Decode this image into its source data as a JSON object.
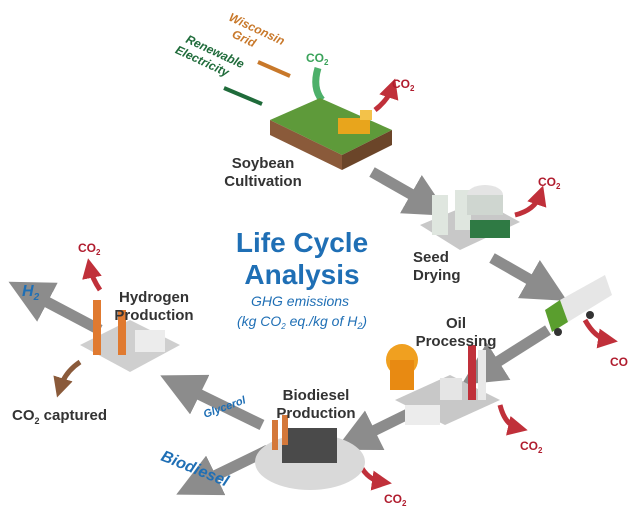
{
  "inputs": [
    {
      "label": [
        "Wisconsin",
        "Grid"
      ]
    },
    {
      "label": [
        "Renewable",
        "Electricity"
      ]
    }
  ],
  "title": [
    "Life Cycle",
    "Analysis"
  ],
  "subtitle": {
    "line1": "GHG emissions",
    "line2": [
      "(kg CO",
      "2",
      " eq./kg of H",
      "2",
      ")"
    ]
  },
  "stages": [
    {
      "label": [
        "Soybean",
        "Cultivation"
      ]
    },
    {
      "label": [
        "Seed",
        "Drying"
      ]
    },
    {
      "label": [
        "Oil",
        "Processing"
      ]
    },
    {
      "label": [
        "Biodiesel",
        "Production"
      ]
    },
    {
      "label": [
        "Hydrogen",
        "Production"
      ]
    }
  ],
  "emissions": [
    [
      "CO",
      "2"
    ],
    [
      "CO",
      "2"
    ],
    [
      "CO",
      "2"
    ],
    [
      "CO"
    ],
    [
      "CO",
      "2"
    ],
    [
      "CO",
      "2"
    ],
    [
      "CO",
      "2"
    ]
  ],
  "flows": {
    "glycerol": "Glycerol",
    "biodiesel": "Biodiesel",
    "h2": [
      "H",
      "2"
    ],
    "captured": [
      "CO",
      "2",
      " captured"
    ]
  }
}
